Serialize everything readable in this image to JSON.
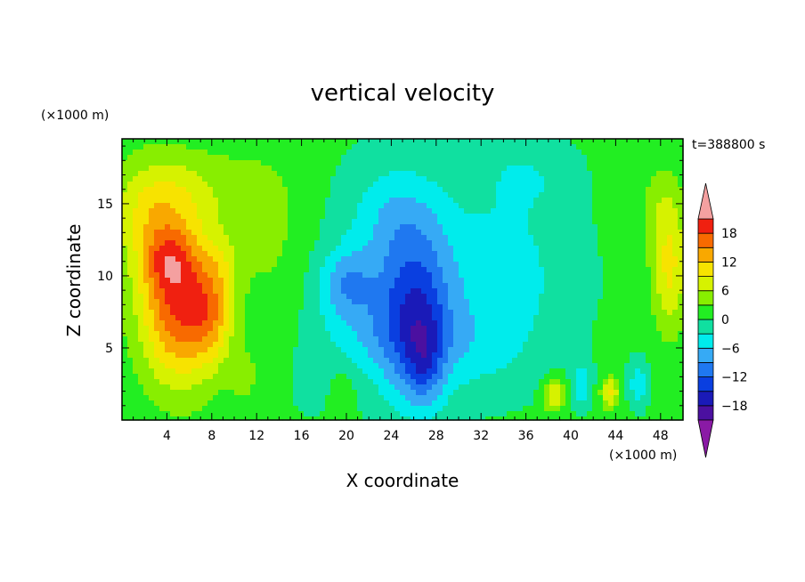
{
  "chart_data": {
    "type": "heatmap",
    "title": "vertical velocity",
    "xlabel": "X coordinate",
    "ylabel": "Z coordinate",
    "x_unit": "(×1000 m)",
    "y_unit": "(×1000 m)",
    "time_label": "t=388800 s",
    "xlim": [
      0,
      50
    ],
    "ylim": [
      0,
      19.5
    ],
    "x_ticks": [
      4,
      8,
      12,
      16,
      20,
      24,
      28,
      32,
      36,
      40,
      44,
      48
    ],
    "y_ticks": [
      5,
      10,
      15
    ],
    "colorbar": {
      "levels": [
        -21,
        -18,
        -15,
        -12,
        -9,
        -6,
        -3,
        0,
        3,
        6,
        9,
        12,
        15,
        18,
        21
      ],
      "tick_labels": [
        -18,
        -12,
        -6,
        0,
        6,
        12,
        18
      ],
      "colors": [
        "#8a1aa5",
        "#4b10a0",
        "#1a1ab8",
        "#0a3fe0",
        "#1f78f0",
        "#36aaf5",
        "#00ecec",
        "#10e0a0",
        "#22ee22",
        "#88ee00",
        "#d6f200",
        "#f7e300",
        "#f9a800",
        "#f86a00",
        "#f02010",
        "#f4a0a0"
      ],
      "extend": "both"
    },
    "field_blobs": [
      {
        "x": 5,
        "z": 8,
        "sx": 3.5,
        "sz": 5.5,
        "amp": 17
      },
      {
        "x": 4.2,
        "z": 11,
        "sx": 2.0,
        "sz": 2.0,
        "amp": 6
      },
      {
        "x": 8,
        "z": 7.5,
        "sx": 2.0,
        "sz": 3.5,
        "amp": 8
      },
      {
        "x": 9,
        "z": 11,
        "sx": 1.5,
        "sz": 2.0,
        "amp": 3
      },
      {
        "x": 2.5,
        "z": 14,
        "sx": 3.5,
        "sz": 4.0,
        "amp": 7
      },
      {
        "x": 7,
        "z": 16,
        "sx": 6.0,
        "sz": 3.0,
        "amp": 4
      },
      {
        "x": 13,
        "z": 13,
        "sx": 3.0,
        "sz": 5.0,
        "amp": 3
      },
      {
        "x": 26,
        "z": 7,
        "sx": 3.5,
        "sz": 5.5,
        "amp": -15
      },
      {
        "x": 27,
        "z": 4,
        "sx": 1.6,
        "sz": 3.0,
        "amp": -6
      },
      {
        "x": 20,
        "z": 9.5,
        "sx": 2.5,
        "sz": 2.5,
        "amp": -8
      },
      {
        "x": 24.5,
        "z": 14,
        "sx": 4.5,
        "sz": 4.0,
        "amp": -6
      },
      {
        "x": 21,
        "z": 6,
        "sx": 4.0,
        "sz": 3.0,
        "amp": -4
      },
      {
        "x": 34,
        "z": 10,
        "sx": 6.0,
        "sz": 6.0,
        "amp": -5
      },
      {
        "x": 32,
        "z": 5,
        "sx": 4.0,
        "sz": 3.0,
        "amp": -3
      },
      {
        "x": 38.5,
        "z": 1.7,
        "sx": 0.9,
        "sz": 1.1,
        "amp": 9
      },
      {
        "x": 43.5,
        "z": 1.9,
        "sx": 0.8,
        "sz": 1.1,
        "amp": 9
      },
      {
        "x": 41,
        "z": 2.5,
        "sx": 0.8,
        "sz": 1.5,
        "amp": -6
      },
      {
        "x": 46,
        "z": 2.5,
        "sx": 0.8,
        "sz": 1.5,
        "amp": -6
      },
      {
        "x": 48.8,
        "z": 10.5,
        "sx": 1.6,
        "sz": 4.5,
        "amp": 9
      },
      {
        "x": 48,
        "z": 15,
        "sx": 2.0,
        "sz": 3.0,
        "amp": 3
      },
      {
        "x": 36,
        "z": 17,
        "sx": 4.0,
        "sz": 2.5,
        "amp": -3
      },
      {
        "x": 17,
        "z": 2.5,
        "sx": 1.5,
        "sz": 1.8,
        "amp": -3
      },
      {
        "x": 19.5,
        "z": 2.0,
        "sx": 1.2,
        "sz": 1.5,
        "amp": 2.5
      },
      {
        "x": 11,
        "z": 3,
        "sx": 1.5,
        "sz": 2.0,
        "amp": 3
      }
    ],
    "background_value": 0.6
  }
}
